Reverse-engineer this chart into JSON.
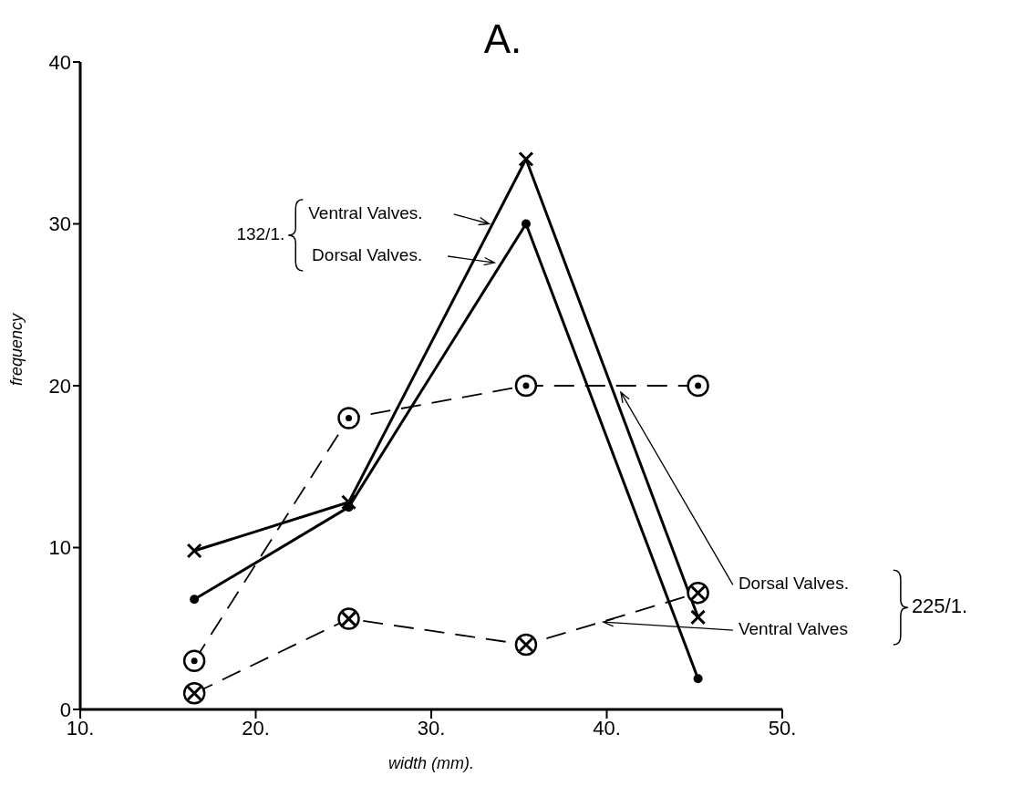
{
  "chart_data": {
    "type": "line",
    "title": "A.",
    "xlabel": "width (mm).",
    "ylabel": "frequency",
    "x": [
      16.5,
      25.3,
      35.4,
      45.2
    ],
    "series": [
      {
        "name": "Ventral Valves.",
        "color": "#000000",
        "values": [
          9.8,
          12.8,
          34,
          5.7
        ],
        "line_style": "solid",
        "marker": "cross"
      },
      {
        "name": "Dorsal Valves.",
        "color": "#000000",
        "values": [
          6.8,
          12.5,
          30,
          1.9
        ],
        "line_style": "solid",
        "marker": "circle"
      },
      {
        "name": "Dorsal Valves.",
        "color": "#000000",
        "values": [
          3,
          18,
          20,
          20
        ],
        "line_style": "dashed",
        "marker": "circle-dot"
      },
      {
        "name": "Ventral Valves",
        "color": "#000000",
        "values": [
          1,
          5.6,
          4,
          7.2
        ],
        "line_style": "dashed",
        "marker": "circle-cross"
      }
    ],
    "annotations": [
      "132/1.",
      "225/1."
    ],
    "xlim": [
      10,
      50
    ],
    "xticks": [
      {
        "value": 10,
        "label": "10."
      },
      {
        "value": 20,
        "label": "20."
      },
      {
        "value": 30,
        "label": "30."
      },
      {
        "value": 40,
        "label": "40."
      },
      {
        "value": 50,
        "label": "50."
      }
    ],
    "ylim": [
      0,
      40
    ],
    "yticks": [
      0,
      10,
      20,
      30,
      40
    ],
    "grid": false,
    "legend": "top left"
  }
}
